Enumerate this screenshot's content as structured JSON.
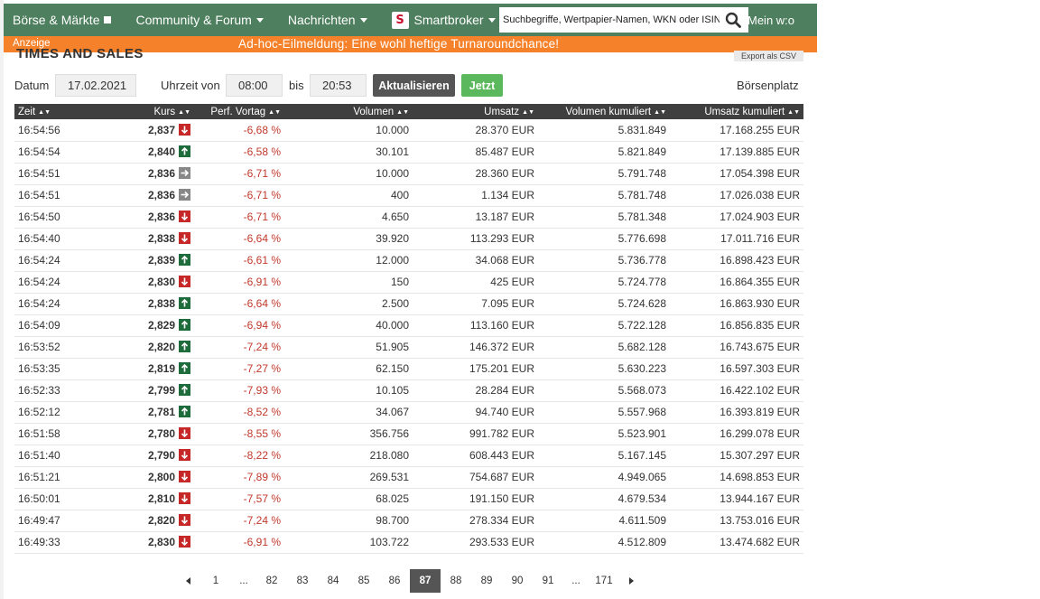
{
  "nav": {
    "items": [
      {
        "label": "Börse & Märkte",
        "icon": "square-icon"
      },
      {
        "label": "Community & Forum",
        "icon": "caret-down-icon"
      },
      {
        "label": "Nachrichten",
        "icon": "caret-down-icon"
      }
    ],
    "smartbroker": {
      "label": "Smartbroker",
      "logo_letter": "S"
    },
    "search": {
      "placeholder": "Suchbegriffe, Wertpapier-Namen, WKN oder ISIN",
      "icon": "search-icon"
    },
    "account": {
      "label": "Mein w:o"
    },
    "colors": {
      "nav_bg": "#4e7f5e",
      "ad_bg": "#f5822a",
      "header_bg": "#3f3f3f",
      "negative": "#c0392b",
      "up": "#1e6b3c",
      "down": "#c62828",
      "flat": "#888888"
    }
  },
  "ad": {
    "label": "Anzeige",
    "message": "Ad-hoc-Eilmeldung: Eine wohl heftige Turnaroundchance!"
  },
  "section": {
    "title": "TIMES AND SALES",
    "export_label": "Export als CSV"
  },
  "filter": {
    "date_label": "Datum",
    "date_value": "17.02.2021",
    "time_from_label": "Uhrzeit von",
    "time_from_value": "08:00",
    "time_to_label": "bis",
    "time_to_value": "20:53",
    "refresh_label": "Aktualisieren",
    "now_label": "Jetzt",
    "exchange_label": "Börsenplatz"
  },
  "table": {
    "headers": [
      "Zeit",
      "Kurs",
      "Perf. Vortag",
      "Volumen",
      "Umsatz",
      "Volumen kumuliert",
      "Umsatz kumuliert"
    ],
    "rows": [
      {
        "zeit": "16:54:56",
        "kurs": "2,837",
        "dir": "down",
        "perf": "-6,68 %",
        "vol": "10.000",
        "ums": "28.370 EUR",
        "volk": "5.831.849",
        "umsk": "17.168.255 EUR"
      },
      {
        "zeit": "16:54:54",
        "kurs": "2,840",
        "dir": "up",
        "perf": "-6,58 %",
        "vol": "30.101",
        "ums": "85.487 EUR",
        "volk": "5.821.849",
        "umsk": "17.139.885 EUR"
      },
      {
        "zeit": "16:54:51",
        "kurs": "2,836",
        "dir": "flat",
        "perf": "-6,71 %",
        "vol": "10.000",
        "ums": "28.360 EUR",
        "volk": "5.791.748",
        "umsk": "17.054.398 EUR"
      },
      {
        "zeit": "16:54:51",
        "kurs": "2,836",
        "dir": "flat",
        "perf": "-6,71 %",
        "vol": "400",
        "ums": "1.134 EUR",
        "volk": "5.781.748",
        "umsk": "17.026.038 EUR"
      },
      {
        "zeit": "16:54:50",
        "kurs": "2,836",
        "dir": "down",
        "perf": "-6,71 %",
        "vol": "4.650",
        "ums": "13.187 EUR",
        "volk": "5.781.348",
        "umsk": "17.024.903 EUR"
      },
      {
        "zeit": "16:54:40",
        "kurs": "2,838",
        "dir": "down",
        "perf": "-6,64 %",
        "vol": "39.920",
        "ums": "113.293 EUR",
        "volk": "5.776.698",
        "umsk": "17.011.716 EUR"
      },
      {
        "zeit": "16:54:24",
        "kurs": "2,839",
        "dir": "up",
        "perf": "-6,61 %",
        "vol": "12.000",
        "ums": "34.068 EUR",
        "volk": "5.736.778",
        "umsk": "16.898.423 EUR"
      },
      {
        "zeit": "16:54:24",
        "kurs": "2,830",
        "dir": "down",
        "perf": "-6,91 %",
        "vol": "150",
        "ums": "425 EUR",
        "volk": "5.724.778",
        "umsk": "16.864.355 EUR"
      },
      {
        "zeit": "16:54:24",
        "kurs": "2,838",
        "dir": "up",
        "perf": "-6,64 %",
        "vol": "2.500",
        "ums": "7.095 EUR",
        "volk": "5.724.628",
        "umsk": "16.863.930 EUR"
      },
      {
        "zeit": "16:54:09",
        "kurs": "2,829",
        "dir": "up",
        "perf": "-6,94 %",
        "vol": "40.000",
        "ums": "113.160 EUR",
        "volk": "5.722.128",
        "umsk": "16.856.835 EUR"
      },
      {
        "zeit": "16:53:52",
        "kurs": "2,820",
        "dir": "up",
        "perf": "-7,24 %",
        "vol": "51.905",
        "ums": "146.372 EUR",
        "volk": "5.682.128",
        "umsk": "16.743.675 EUR"
      },
      {
        "zeit": "16:53:35",
        "kurs": "2,819",
        "dir": "up",
        "perf": "-7,27 %",
        "vol": "62.150",
        "ums": "175.201 EUR",
        "volk": "5.630.223",
        "umsk": "16.597.303 EUR"
      },
      {
        "zeit": "16:52:33",
        "kurs": "2,799",
        "dir": "up",
        "perf": "-7,93 %",
        "vol": "10.105",
        "ums": "28.284 EUR",
        "volk": "5.568.073",
        "umsk": "16.422.102 EUR"
      },
      {
        "zeit": "16:52:12",
        "kurs": "2,781",
        "dir": "up",
        "perf": "-8,52 %",
        "vol": "34.067",
        "ums": "94.740 EUR",
        "volk": "5.557.968",
        "umsk": "16.393.819 EUR"
      },
      {
        "zeit": "16:51:58",
        "kurs": "2,780",
        "dir": "down",
        "perf": "-8,55 %",
        "vol": "356.756",
        "ums": "991.782 EUR",
        "volk": "5.523.901",
        "umsk": "16.299.078 EUR"
      },
      {
        "zeit": "16:51:40",
        "kurs": "2,790",
        "dir": "down",
        "perf": "-8,22 %",
        "vol": "218.080",
        "ums": "608.443 EUR",
        "volk": "5.167.145",
        "umsk": "15.307.297 EUR"
      },
      {
        "zeit": "16:51:21",
        "kurs": "2,800",
        "dir": "down",
        "perf": "-7,89 %",
        "vol": "269.531",
        "ums": "754.687 EUR",
        "volk": "4.949.065",
        "umsk": "14.698.853 EUR"
      },
      {
        "zeit": "16:50:01",
        "kurs": "2,810",
        "dir": "down",
        "perf": "-7,57 %",
        "vol": "68.025",
        "ums": "191.150 EUR",
        "volk": "4.679.534",
        "umsk": "13.944.167 EUR"
      },
      {
        "zeit": "16:49:47",
        "kurs": "2,820",
        "dir": "down",
        "perf": "-7,24 %",
        "vol": "98.700",
        "ums": "278.334 EUR",
        "volk": "4.611.509",
        "umsk": "13.753.016 EUR"
      },
      {
        "zeit": "16:49:33",
        "kurs": "2,830",
        "dir": "down",
        "perf": "-6,91 %",
        "vol": "103.722",
        "ums": "293.533 EUR",
        "volk": "4.512.809",
        "umsk": "13.474.682 EUR"
      }
    ]
  },
  "pagination": {
    "items": [
      "1",
      "...",
      "82",
      "83",
      "84",
      "85",
      "86",
      "87",
      "88",
      "89",
      "90",
      "91",
      "...",
      "171"
    ],
    "current": "87"
  }
}
